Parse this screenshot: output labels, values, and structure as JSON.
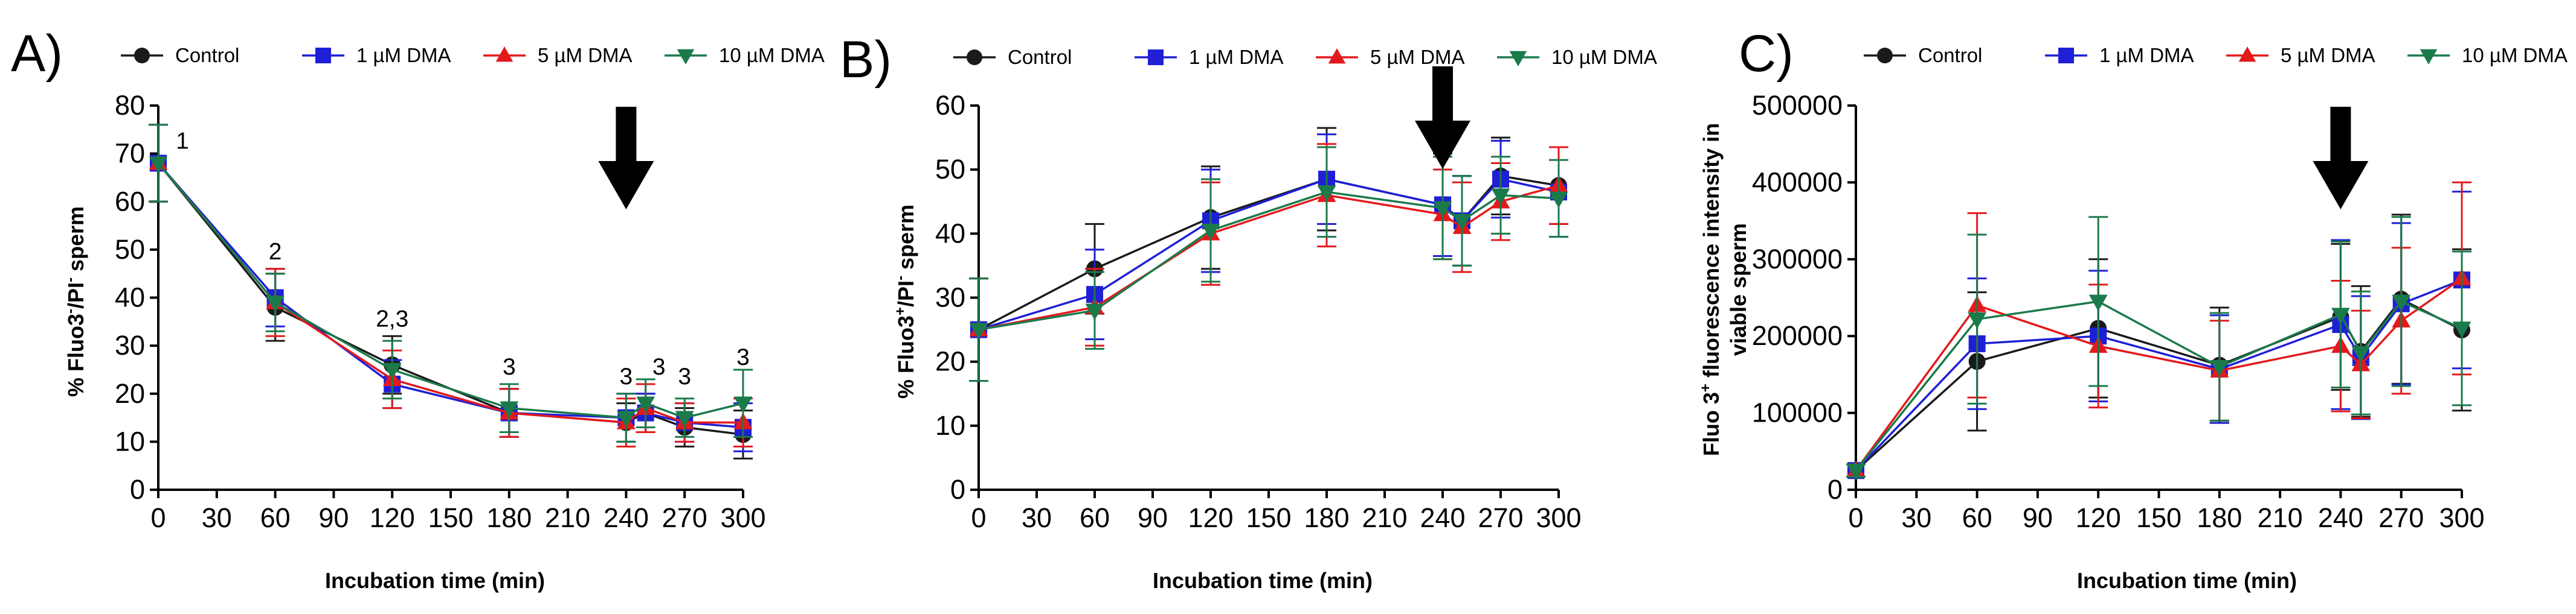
{
  "figure": {
    "panels": [
      {
        "letter": "A)"
      },
      {
        "letter": "B)"
      },
      {
        "letter": "C)"
      }
    ]
  },
  "colors": {
    "Control": "#1a1a1a",
    "1 µM DMA": "#1f1fd6",
    "5 µM DMA": "#e31a1c",
    "10 µM DMA": "#1b7a4a"
  },
  "chart_data": [
    {
      "type": "line",
      "title": "",
      "xlabel": "Incubation time (min)",
      "ylabel": "% Fluo3-/PI- sperm",
      "ylabel_parts": {
        "pre": "% Fluo3",
        "sup1": "-",
        "mid": "/PI",
        "sup2": "-",
        "post": " sperm"
      },
      "x": [
        0,
        60,
        120,
        180,
        240,
        250,
        270,
        300
      ],
      "xticks": [
        0,
        30,
        60,
        90,
        120,
        150,
        180,
        210,
        240,
        270,
        300
      ],
      "xlim": [
        0,
        300
      ],
      "ylim": [
        0,
        80
      ],
      "yticks": [
        0,
        10,
        20,
        30,
        40,
        50,
        60,
        70,
        80
      ],
      "ytick_labels": [
        "0",
        "10",
        "20",
        "30",
        "40",
        "50",
        "60",
        "70",
        "80"
      ],
      "arrow_at_x": 240,
      "legend": [
        "Control",
        "1 µM DMA",
        "5 µM DMA",
        "10 µM DMA"
      ],
      "series": [
        {
          "name": "Control",
          "marker": "circle",
          "values": [
            68,
            38,
            26,
            16,
            14,
            16,
            13,
            11.5
          ],
          "errors": [
            8,
            7,
            6,
            5,
            4,
            4,
            4,
            5
          ]
        },
        {
          "name": "1 µM DMA",
          "marker": "square",
          "values": [
            68,
            40,
            22,
            16,
            15,
            16,
            14,
            13
          ],
          "errors": [
            8,
            6,
            5,
            5,
            5,
            4,
            4,
            5
          ]
        },
        {
          "name": "5 µM DMA",
          "marker": "triangle-up",
          "values": [
            68,
            39,
            23,
            16,
            14,
            17,
            14,
            14
          ],
          "errors": [
            8,
            7,
            6,
            5,
            5,
            5,
            4,
            5
          ]
        },
        {
          "name": "10 µM DMA",
          "marker": "triangle-down",
          "values": [
            68,
            39,
            25,
            17,
            15,
            18,
            15,
            18
          ],
          "errors": [
            8,
            6,
            6,
            5,
            5,
            5,
            4,
            7
          ]
        }
      ],
      "annotations": [
        {
          "x": 0,
          "y": 71,
          "text": "1",
          "dx": 40
        },
        {
          "x": 60,
          "y": 48,
          "text": "2",
          "dx": 0
        },
        {
          "x": 120,
          "y": 34,
          "text": "2,3",
          "dx": 0
        },
        {
          "x": 180,
          "y": 24,
          "text": "3",
          "dx": 0
        },
        {
          "x": 240,
          "y": 22,
          "text": "3",
          "dx": 0
        },
        {
          "x": 250,
          "y": 24,
          "text": "3",
          "dx": 22
        },
        {
          "x": 270,
          "y": 22,
          "text": "3",
          "dx": 0
        },
        {
          "x": 300,
          "y": 26,
          "text": "3",
          "dx": 0
        }
      ]
    },
    {
      "type": "line",
      "title": "",
      "xlabel": "Incubation time (min)",
      "ylabel": "% Fluo3+/PI- sperm",
      "ylabel_parts": {
        "pre": "% Fluo3",
        "sup1": "+",
        "mid": "/PI",
        "sup2": "-",
        "post": " sperm"
      },
      "x": [
        0,
        60,
        120,
        180,
        240,
        250,
        270,
        300
      ],
      "xticks": [
        0,
        30,
        60,
        90,
        120,
        150,
        180,
        210,
        240,
        270,
        300
      ],
      "xlim": [
        0,
        300
      ],
      "ylim": [
        0,
        60
      ],
      "yticks": [
        0,
        10,
        20,
        30,
        40,
        50,
        60
      ],
      "ytick_labels": [
        "0",
        "10",
        "20",
        "30",
        "40",
        "50",
        "60"
      ],
      "arrow_at_x": 240,
      "legend": [
        "Control",
        "1 µM DMA",
        "5 µM DMA",
        "10 µM DMA"
      ],
      "series": [
        {
          "name": "Control",
          "marker": "circle",
          "values": [
            25,
            34.5,
            42.5,
            48.5,
            44.5,
            42,
            49,
            47.5
          ],
          "errors": [
            8,
            7,
            8,
            8,
            8,
            7,
            6,
            6
          ]
        },
        {
          "name": "1 µM DMA",
          "marker": "square",
          "values": [
            25,
            30.5,
            42,
            48.5,
            44.5,
            42,
            48.5,
            46.5
          ],
          "errors": [
            8,
            7,
            8,
            7,
            8,
            7,
            6,
            7
          ]
        },
        {
          "name": "5 µM DMA",
          "marker": "triangle-up",
          "values": [
            25,
            28.5,
            40,
            46,
            43,
            41,
            45,
            47.5
          ],
          "errors": [
            8,
            6,
            8,
            8,
            7,
            7,
            6,
            6
          ]
        },
        {
          "name": "10 µM DMA",
          "marker": "triangle-down",
          "values": [
            25,
            28,
            40.5,
            46.5,
            44,
            42,
            46,
            45.5
          ],
          "errors": [
            8,
            6,
            8,
            7,
            8,
            7,
            6,
            6
          ]
        }
      ],
      "annotations": []
    },
    {
      "type": "line",
      "title": "",
      "xlabel": "Incubation time (min)",
      "ylabel": "Fluo 3+ fluorescence intensity in viable sperm",
      "ylabel_line1_parts": {
        "pre": "Fluo 3",
        "sup": "+",
        "post": " fluorescence intensity in"
      },
      "ylabel_line2": "viable sperm",
      "x": [
        0,
        60,
        120,
        180,
        240,
        250,
        270,
        300
      ],
      "xticks": [
        0,
        30,
        60,
        90,
        120,
        150,
        180,
        210,
        240,
        270,
        300
      ],
      "xlim": [
        0,
        300
      ],
      "ylim": [
        0,
        500000
      ],
      "yticks": [
        0,
        100000,
        200000,
        300000,
        400000,
        500000
      ],
      "ytick_labels": [
        "0",
        "100000",
        "200000",
        "300000",
        "400000",
        "500000"
      ],
      "arrow_at_x": 240,
      "legend": [
        "Control",
        "1 µM DMA",
        "5 µM DMA",
        "10 µM DMA"
      ],
      "series": [
        {
          "name": "Control",
          "marker": "circle",
          "values": [
            25000,
            167000,
            210000,
            162000,
            225000,
            180000,
            248000,
            208000
          ],
          "errors": [
            8000,
            90000,
            90000,
            75000,
            95000,
            85000,
            110000,
            105000
          ]
        },
        {
          "name": "1 µM DMA",
          "marker": "square",
          "values": [
            25000,
            190000,
            200000,
            157000,
            215000,
            172000,
            242000,
            273000
          ],
          "errors": [
            8000,
            85000,
            85000,
            70000,
            110000,
            80000,
            105000,
            115000
          ]
        },
        {
          "name": "5 µM DMA",
          "marker": "triangle-up",
          "values": [
            25000,
            240000,
            187000,
            155000,
            187000,
            163000,
            220000,
            275000
          ],
          "errors": [
            8000,
            120000,
            80000,
            65000,
            85000,
            70000,
            95000,
            125000
          ]
        },
        {
          "name": "10 µM DMA",
          "marker": "triangle-down",
          "values": [
            25000,
            222000,
            245000,
            160000,
            228000,
            178000,
            245000,
            210000
          ],
          "errors": [
            8000,
            110000,
            110000,
            70000,
            95000,
            80000,
            110000,
            100000
          ]
        }
      ],
      "annotations": []
    }
  ]
}
